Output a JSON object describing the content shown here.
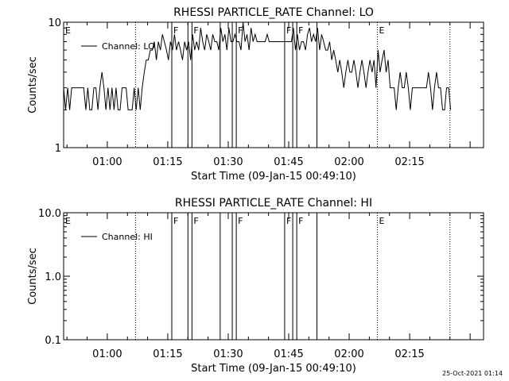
{
  "chart_data": [
    {
      "type": "line",
      "title": "RHESSI PARTICLE_RATE Channel: LO",
      "xlabel": "Start Time (09-Jan-15 00:49:10)",
      "ylabel": "Counts/sec",
      "yscale": "log",
      "ylim": [
        1,
        10
      ],
      "xlim": [
        "00:49:10",
        "02:33:20"
      ],
      "x_ticks": [
        "01:00",
        "01:15",
        "01:30",
        "01:45",
        "02:00",
        "02:15"
      ],
      "y_tick_labels": [
        "1",
        "10"
      ],
      "legend": {
        "label": "Channel: LO",
        "placement": "top-left"
      },
      "series": [
        {
          "name": "Channel: LO",
          "x_minutes_after_0049": [
            0,
            0.5,
            1,
            1.5,
            2,
            2.5,
            3,
            3.5,
            4,
            4.5,
            5,
            5.5,
            6,
            6.5,
            7,
            7.5,
            8,
            8.5,
            9,
            9.5,
            10,
            10.5,
            11,
            11.5,
            12,
            12.5,
            13,
            13.5,
            14,
            14.5,
            15,
            15.5,
            16,
            16.5,
            17,
            17.5,
            18,
            18.5,
            19,
            19.5,
            20,
            20.5,
            21,
            21.5,
            22,
            22.5,
            23,
            23.5,
            24,
            24.5,
            25,
            25.5,
            26,
            26.5,
            27,
            27.5,
            28,
            28.5,
            29,
            29.5,
            30,
            30.5,
            31,
            31.5,
            32,
            32.5,
            33,
            33.5,
            34,
            34.5,
            35,
            35.5,
            36,
            36.5,
            37,
            37.5,
            38,
            38.5,
            39,
            39.5,
            40,
            40.5,
            41,
            41.5,
            42,
            42.5,
            43,
            43.5,
            44,
            44.5,
            45,
            45.5,
            46,
            46.5,
            47,
            47.5,
            48,
            48.5,
            49,
            49.5,
            50,
            50.5,
            51,
            51.5,
            52,
            52.5,
            53,
            53.5,
            54,
            54.5,
            55,
            55.5,
            56,
            56.5,
            57,
            57.5,
            58,
            58.5,
            59,
            59.5,
            60,
            60.5,
            61,
            61.5,
            62,
            62.5,
            63,
            63.5,
            64,
            64.5,
            65,
            65.5,
            66,
            66.5,
            67,
            67.5,
            68,
            68.5,
            69,
            69.5,
            70,
            70.5,
            71,
            71.5,
            72,
            72.5,
            73,
            73.5,
            74,
            74.5,
            75,
            75.5,
            76,
            76.5,
            77,
            77.5,
            78,
            78.5,
            79,
            79.5,
            80,
            80.5,
            81,
            81.5,
            82,
            82.5,
            83,
            83.5,
            84,
            84.5,
            85,
            85.5,
            86,
            86.5,
            87,
            87.5,
            88,
            88.5,
            89,
            89.5,
            90,
            90.5,
            91,
            91.5,
            92,
            92.5,
            93,
            93.5,
            94,
            94.5,
            95,
            95.5,
            96
          ],
          "values": [
            3,
            2,
            3,
            2,
            3,
            3,
            3,
            3,
            3,
            3,
            3,
            2,
            3,
            2,
            2,
            3,
            3,
            2,
            3,
            4,
            3,
            2,
            3,
            2,
            3,
            2,
            3,
            2,
            2,
            3,
            3,
            3,
            2,
            2,
            2,
            3,
            2,
            3,
            2,
            3,
            4,
            5,
            5,
            6,
            6,
            7,
            5,
            7,
            6,
            8,
            7,
            6,
            5,
            7,
            6,
            8,
            6,
            7,
            6,
            5,
            7,
            6,
            7,
            5,
            8,
            6,
            7,
            6,
            9,
            7,
            6,
            8,
            7,
            6,
            8,
            7,
            7,
            6,
            9,
            7,
            8,
            6,
            9,
            7,
            7,
            8,
            7,
            7,
            6,
            10,
            7,
            8,
            6,
            9,
            7,
            8,
            7,
            7,
            7,
            7,
            7,
            8,
            7,
            7,
            7,
            7,
            7,
            7,
            7,
            7,
            7,
            7,
            7,
            7,
            9,
            6,
            8,
            6,
            7,
            7,
            6,
            8,
            9,
            7,
            8,
            7,
            9,
            6,
            8,
            7,
            6,
            6,
            7,
            5,
            6,
            5,
            4,
            5,
            4,
            3,
            4,
            5,
            4,
            4,
            5,
            4,
            3,
            4,
            5,
            4,
            3,
            4,
            5,
            4,
            5,
            3,
            6,
            4,
            5,
            6,
            4,
            5,
            3,
            3,
            3,
            2,
            3,
            4,
            3,
            3,
            4,
            3,
            2,
            3,
            3,
            3,
            3,
            3,
            3,
            3,
            3,
            4,
            3,
            2,
            3,
            4,
            3,
            3,
            2,
            2,
            3,
            3,
            2
          ]
        }
      ],
      "annotations": [
        {
          "text": "E",
          "at": "00:49:10",
          "line": "none"
        },
        {
          "text": "",
          "at": "01:07",
          "line": "dotted"
        },
        {
          "text": "F",
          "at": "01:16",
          "line": "solid"
        },
        {
          "text": "",
          "at": "01:20",
          "line": "solid"
        },
        {
          "text": "F",
          "at": "01:21",
          "line": "solid"
        },
        {
          "text": "",
          "at": "01:28",
          "line": "solid"
        },
        {
          "text": "",
          "at": "01:31",
          "line": "solid"
        },
        {
          "text": "F",
          "at": "01:32",
          "line": "solid"
        },
        {
          "text": "F",
          "at": "01:44",
          "line": "solid"
        },
        {
          "text": "",
          "at": "01:46",
          "line": "solid"
        },
        {
          "text": "F",
          "at": "01:47",
          "line": "solid"
        },
        {
          "text": "",
          "at": "01:52",
          "line": "solid"
        },
        {
          "text": "E",
          "at": "02:07",
          "line": "dotted"
        },
        {
          "text": "",
          "at": "02:25",
          "line": "dotted"
        }
      ]
    },
    {
      "type": "line",
      "title": "RHESSI PARTICLE_RATE Channel: HI",
      "xlabel": "Start Time (09-Jan-15 00:49:10)",
      "ylabel": "Counts/sec",
      "yscale": "log",
      "ylim": [
        0.1,
        10
      ],
      "xlim": [
        "00:49:10",
        "02:33:20"
      ],
      "x_ticks": [
        "01:00",
        "01:15",
        "01:30",
        "01:45",
        "02:00",
        "02:15"
      ],
      "y_tick_labels": [
        "0.1",
        "1.0",
        "10.0"
      ],
      "legend": {
        "label": "Channel: HI",
        "placement": "top-left"
      },
      "series": [
        {
          "name": "Channel: HI",
          "x_minutes_after_0049": [],
          "values": []
        }
      ],
      "annotations": [
        {
          "text": "E",
          "at": "00:49:10",
          "line": "none"
        },
        {
          "text": "",
          "at": "01:07",
          "line": "dotted"
        },
        {
          "text": "F",
          "at": "01:16",
          "line": "solid"
        },
        {
          "text": "",
          "at": "01:20",
          "line": "solid"
        },
        {
          "text": "F",
          "at": "01:21",
          "line": "solid"
        },
        {
          "text": "",
          "at": "01:28",
          "line": "solid"
        },
        {
          "text": "",
          "at": "01:31",
          "line": "solid"
        },
        {
          "text": "F",
          "at": "01:32",
          "line": "solid"
        },
        {
          "text": "F",
          "at": "01:44",
          "line": "solid"
        },
        {
          "text": "",
          "at": "01:46",
          "line": "solid"
        },
        {
          "text": "F",
          "at": "01:47",
          "line": "solid"
        },
        {
          "text": "",
          "at": "01:52",
          "line": "solid"
        },
        {
          "text": "E",
          "at": "02:07",
          "line": "dotted"
        },
        {
          "text": "",
          "at": "02:25",
          "line": "dotted"
        }
      ]
    }
  ],
  "footer": {
    "timestamp": "25-Oct-2021 01:14"
  },
  "colors": {
    "background": "#ffffff",
    "foreground": "#000000"
  }
}
